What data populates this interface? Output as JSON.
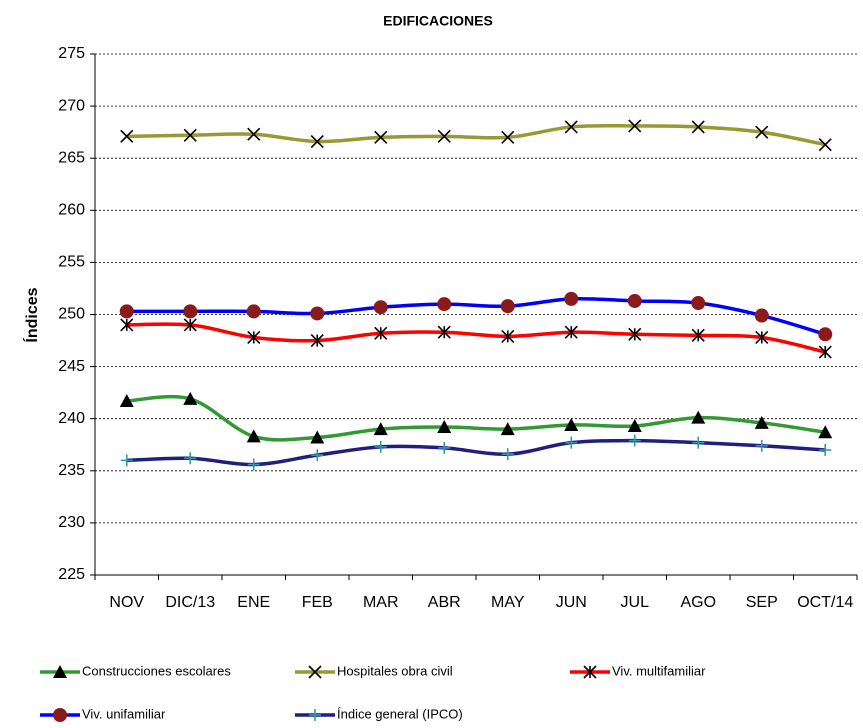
{
  "chart_data": {
    "type": "line",
    "title": "EDIFICACIONES",
    "y_label": "Índices",
    "categories": [
      "NOV",
      "DIC/13",
      "ENE",
      "FEB",
      "MAR",
      "ABR",
      "MAY",
      "JUN",
      "JUL",
      "AGO",
      "SEP",
      "OCT/14"
    ],
    "ylim": [
      225,
      275
    ],
    "yticks": [
      225,
      230,
      235,
      240,
      245,
      250,
      255,
      260,
      265,
      270,
      275
    ],
    "grid": true,
    "legend": "bottom",
    "series": [
      {
        "name": "Construcciones escolares",
        "color": "#339933",
        "marker": "triangle",
        "marker_color": "#000000",
        "values": [
          241.7,
          241.9,
          238.3,
          238.2,
          239.0,
          239.2,
          239.0,
          239.4,
          239.3,
          240.1,
          239.6,
          238.7
        ]
      },
      {
        "name": "Hospitales obra civil",
        "color": "#999933",
        "marker": "x",
        "marker_color": "#000000",
        "values": [
          267.1,
          267.2,
          267.3,
          266.6,
          267.0,
          267.1,
          267.0,
          268.0,
          268.1,
          268.0,
          267.5,
          266.3
        ]
      },
      {
        "name": "Viv. multifamiliar",
        "color": "#ff0000",
        "marker": "asterisk",
        "marker_color": "#000000",
        "values": [
          249.0,
          249.0,
          247.8,
          247.5,
          248.2,
          248.3,
          247.9,
          248.3,
          248.1,
          248.0,
          247.8,
          246.4
        ]
      },
      {
        "name": "Viv. unifamiliar",
        "color": "#0000ff",
        "marker": "circle",
        "marker_color": "#8b1a1a",
        "values": [
          250.3,
          250.3,
          250.3,
          250.1,
          250.7,
          251.0,
          250.8,
          251.5,
          251.3,
          251.1,
          249.9,
          248.1
        ]
      },
      {
        "name": "Índice general (IPCO)",
        "color": "#1f1f7f",
        "marker": "plus",
        "marker_color": "#3399aa",
        "values": [
          236.0,
          236.2,
          235.6,
          236.5,
          237.3,
          237.2,
          236.6,
          237.7,
          237.9,
          237.7,
          237.4,
          237.0
        ]
      }
    ]
  }
}
